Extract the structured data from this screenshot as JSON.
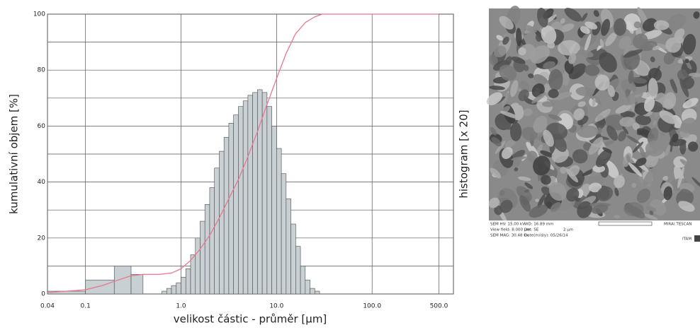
{
  "chart_data": {
    "type": "histogram",
    "xlabel": "velikost částic - průměr [µm]",
    "ylabel": "kumulativní objem [%]",
    "y2label": "histogram [x 20]",
    "xscale": "log",
    "xlim": [
      0.04,
      710
    ],
    "xticks": [
      0.04,
      0.1,
      {
        "value": 1,
        "label": "1.0"
      },
      {
        "value": 10,
        "label": "10.0"
      },
      {
        "value": 100,
        "label": "100.0"
      },
      {
        "value": 500,
        "label": "500.0"
      }
    ],
    "ylim": [
      0,
      100
    ],
    "yticks": [
      0,
      20,
      40,
      60,
      80,
      100
    ],
    "minor_yticks": [
      10,
      30,
      50,
      70,
      90
    ],
    "grid": true,
    "bins": [
      0.04,
      0.1,
      0.2,
      0.3,
      0.4,
      0.562,
      0.631,
      0.708,
      0.794,
      0.891,
      1,
      1.122,
      1.259,
      1.413,
      1.585,
      1.778,
      1.995,
      2.239,
      2.512,
      2.818,
      3.162,
      3.548,
      3.981,
      4.467,
      5.012,
      5.623,
      6.31,
      7.079,
      7.943,
      8.913,
      10,
      11.22,
      12.59,
      14.13,
      15.85,
      17.78,
      19.95,
      22.39,
      25.12,
      28.18
    ],
    "values": [
      1,
      5,
      10,
      7,
      0,
      0,
      1,
      2,
      3,
      4,
      6,
      9,
      14,
      20,
      26,
      32,
      38,
      45,
      51,
      56,
      61,
      64,
      67,
      69,
      71,
      72,
      73,
      72,
      67,
      60,
      52,
      43,
      34,
      25,
      17,
      10,
      5,
      2,
      1
    ],
    "color": "#c9d0d3",
    "edge_color": "#4a4a4a",
    "cumulative": {
      "x": [
        0.04,
        0.1,
        0.15,
        0.2,
        0.3,
        0.4,
        0.6,
        0.8,
        1,
        1.26,
        1.58,
        2,
        2.5,
        3.16,
        4,
        5,
        6.3,
        8,
        10,
        12.6,
        15.8,
        20,
        25,
        30,
        500
      ],
      "values": [
        0.5,
        1.5,
        3,
        4.5,
        6.5,
        7,
        7,
        7.5,
        9,
        12,
        16,
        21,
        27,
        34,
        41,
        49,
        58,
        68,
        77,
        86,
        93,
        97,
        99,
        100,
        100
      ],
      "color": "#e8768e"
    }
  },
  "sem_image": {
    "caption": [
      "SEM HV: 15.00 kV",
      "WD: 16.89 mm",
      "View field: 8.000 µm",
      "Det: SE",
      "SEM MAG: 30.48 kx",
      "Date(m/d/y): 05/26/14"
    ],
    "scale_label": "2 µm",
    "brand": "MIRA\\ TESCAN",
    "lab": "ITAM"
  }
}
